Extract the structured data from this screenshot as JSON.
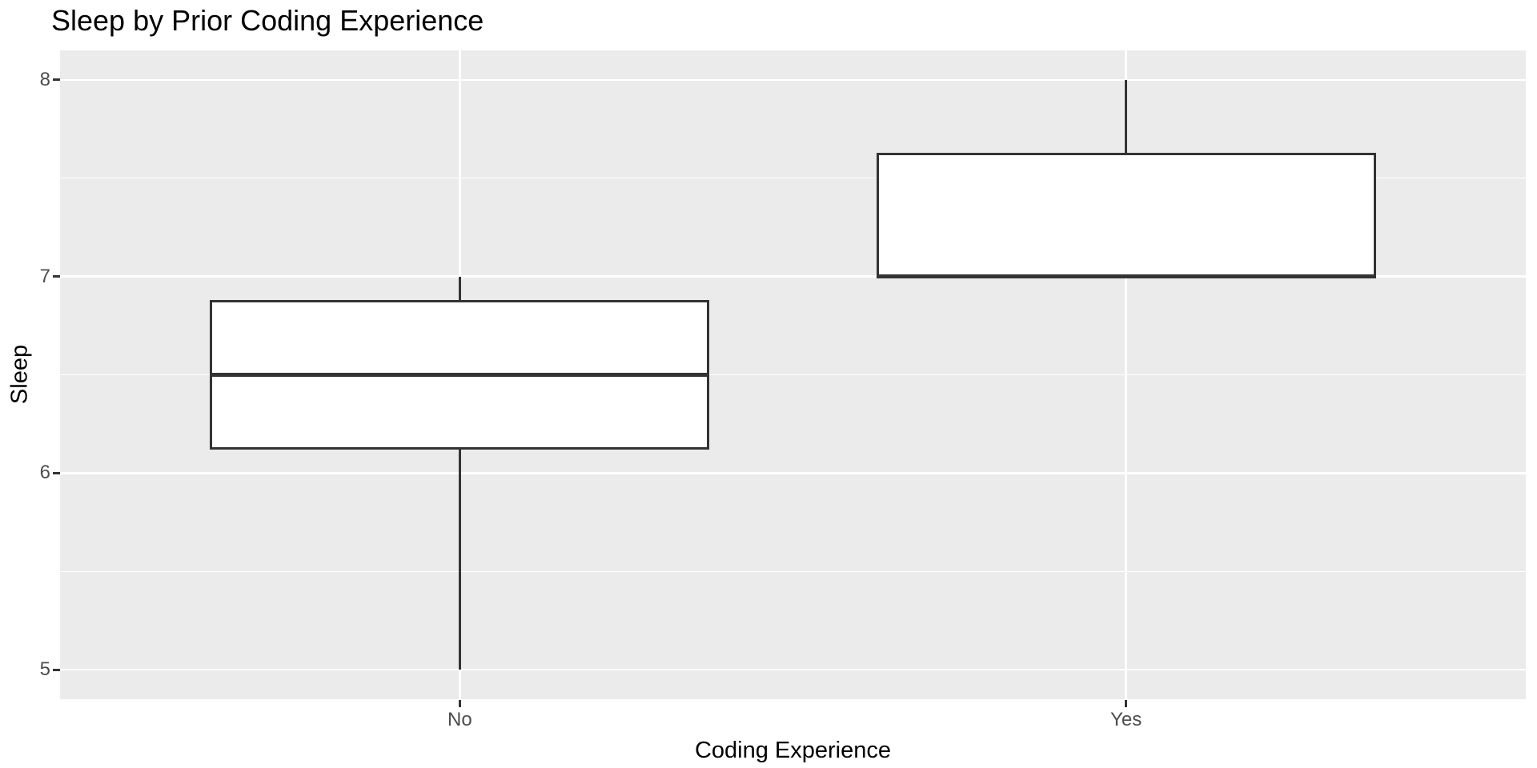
{
  "chart_data": {
    "type": "boxplot",
    "title": "Sleep by Prior Coding Experience",
    "xlabel": "Coding Experience",
    "ylabel": "Sleep",
    "categories": [
      "No",
      "Yes"
    ],
    "series": [
      {
        "name": "No",
        "whisker_low": 5.0,
        "q1": 6.125,
        "median": 6.5,
        "q3": 6.875,
        "whisker_high": 7.0,
        "outliers": []
      },
      {
        "name": "Yes",
        "whisker_low": 7.0,
        "q1": 7.0,
        "median": 7.0,
        "q3": 7.625,
        "whisker_high": 8.0,
        "outliers": []
      }
    ],
    "y_axis": {
      "ticks": [
        5,
        6,
        7,
        8
      ],
      "tick_labels": [
        "5",
        "6",
        "7",
        "8"
      ],
      "minor_ticks": [
        5.5,
        6.5,
        7.5
      ],
      "range": [
        4.85,
        8.15
      ]
    },
    "x_axis": {
      "positions": [
        1,
        2
      ],
      "range": [
        0.4,
        2.6
      ],
      "box_width": 0.75
    },
    "grid": "on",
    "legend": "none",
    "style": {
      "panel_background": "#EBEBEB",
      "grid_color": "#FFFFFF",
      "box_fill": "#FFFFFF",
      "box_stroke": "#333333",
      "median_color": "#333333",
      "tick_mark_color": "#333333",
      "axis_text_color": "#4D4D4D",
      "axis_title_color": "#000000",
      "title_color": "#000000",
      "background": "#FFFFFF"
    }
  }
}
